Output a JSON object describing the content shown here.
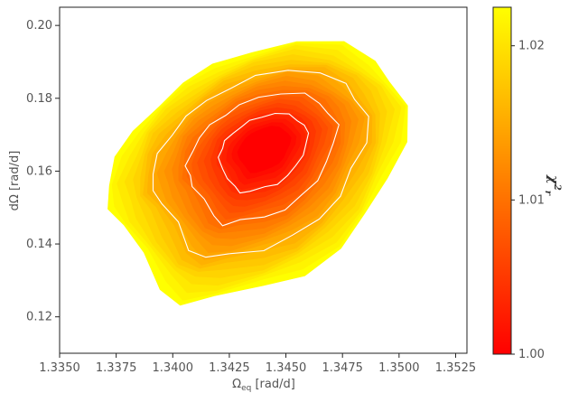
{
  "chart_data": {
    "type": "contour",
    "title": "",
    "xlabel": "Ω_eq [rad/d]",
    "ylabel": "dΩ [rad/d]",
    "xlim": [
      1.335,
      1.353
    ],
    "ylim": [
      0.11,
      0.205
    ],
    "x_ticks": [
      "1.3350",
      "1.3375",
      "1.3400",
      "1.3425",
      "1.3450",
      "1.3475",
      "1.3500",
      "1.3525"
    ],
    "y_ticks": [
      "0.12",
      "0.14",
      "0.16",
      "0.18",
      "0.20"
    ],
    "colorbar": {
      "label": "χ_r²",
      "range": [
        1.0,
        1.0225
      ],
      "ticks": [
        "1.00",
        "1.01",
        "1.02"
      ],
      "colormap": "autumn",
      "low_color": "#ff0000",
      "high_color": "#ffff00"
    },
    "minimum": {
      "x": 1.3441,
      "y": 0.1672,
      "chi2": 1.0
    },
    "outline": [
      [
        1.3372,
        0.156
      ],
      [
        1.3376,
        0.164
      ],
      [
        1.3382,
        0.171
      ],
      [
        1.3393,
        0.178
      ],
      [
        1.3405,
        0.184
      ],
      [
        1.3418,
        0.189
      ],
      [
        1.3435,
        0.193
      ],
      [
        1.3455,
        0.196
      ],
      [
        1.3475,
        0.195
      ],
      [
        1.3489,
        0.19
      ],
      [
        1.3497,
        0.185
      ],
      [
        1.3504,
        0.178
      ],
      [
        1.3502,
        0.168
      ],
      [
        1.3495,
        0.158
      ],
      [
        1.3486,
        0.148
      ],
      [
        1.3474,
        0.139
      ],
      [
        1.3458,
        0.132
      ],
      [
        1.344,
        0.128
      ],
      [
        1.3418,
        0.125
      ],
      [
        1.3404,
        0.124
      ],
      [
        1.3395,
        0.128
      ],
      [
        1.3386,
        0.137
      ],
      [
        1.3378,
        0.145
      ],
      [
        1.3373,
        0.15
      ]
    ]
  }
}
